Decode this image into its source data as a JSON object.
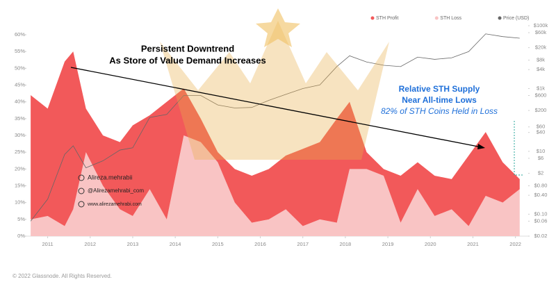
{
  "chart_data": {
    "type": "stacked-area",
    "x": [
      2010.6,
      2011.0,
      2011.4,
      2011.6,
      2011.9,
      2012.3,
      2012.7,
      2013.0,
      2013.4,
      2013.8,
      2014.2,
      2014.6,
      2015.0,
      2015.4,
      2015.8,
      2016.2,
      2016.6,
      2017.0,
      2017.4,
      2017.8,
      2018.1,
      2018.5,
      2018.9,
      2019.3,
      2019.7,
      2020.1,
      2020.5,
      2020.9,
      2021.3,
      2021.7,
      2022.1
    ],
    "series": [
      {
        "name": "STH Loss",
        "color": "#f9c4c4",
        "values": [
          5,
          6,
          3,
          8,
          25,
          15,
          8,
          6,
          14,
          5,
          30,
          28,
          22,
          10,
          4,
          5,
          8,
          3,
          5,
          4,
          20,
          20,
          18,
          4,
          14,
          6,
          8,
          3,
          12,
          10,
          14
        ]
      },
      {
        "name": "STH Profit",
        "color": "#f2595a",
        "values": [
          37,
          32,
          49,
          47,
          13,
          15,
          20,
          27,
          22,
          35,
          14,
          7,
          3,
          10,
          14,
          15,
          16,
          23,
          23,
          31,
          20,
          5,
          2,
          14,
          8,
          12,
          9,
          21,
          19,
          12,
          3
        ]
      },
      {
        "name": "Price (USD)",
        "color": "#666666",
        "axis": "y2",
        "values": [
          0.06,
          0.3,
          8,
          15,
          3,
          5,
          11,
          13,
          120,
          150,
          600,
          600,
          300,
          240,
          250,
          420,
          650,
          1000,
          1300,
          5000,
          11000,
          7000,
          5500,
          5000,
          10000,
          8500,
          9500,
          15000,
          55000,
          45000,
          40000
        ]
      }
    ],
    "xlim": [
      2010.5,
      2022.3
    ],
    "xticks": [
      2011,
      2012,
      2013,
      2014,
      2015,
      2016,
      2017,
      2018,
      2019,
      2020,
      2021,
      2022
    ],
    "ylim": [
      0,
      60
    ],
    "yticks": [
      {
        "value": 0,
        "label": "0%"
      },
      {
        "value": 5,
        "label": "5%"
      },
      {
        "value": 10,
        "label": "10%"
      },
      {
        "value": 15,
        "label": "15%"
      },
      {
        "value": 20,
        "label": "20%"
      },
      {
        "value": 25,
        "label": "25%"
      },
      {
        "value": 30,
        "label": "30%"
      },
      {
        "value": 35,
        "label": "35%"
      },
      {
        "value": 40,
        "label": "40%"
      },
      {
        "value": 45,
        "label": "45%"
      },
      {
        "value": 50,
        "label": "50%"
      },
      {
        "value": 55,
        "label": "55%"
      },
      {
        "value": 60,
        "label": "60%"
      }
    ],
    "y2lim": [
      0.02,
      100000
    ],
    "y2log": true,
    "y2ticks": [
      {
        "value": 0.02,
        "label": "$0.02"
      },
      {
        "value": 0.06,
        "label": "$0.06"
      },
      {
        "value": 0.1,
        "label": "$0.10"
      },
      {
        "value": 0.4,
        "label": "$0.40"
      },
      {
        "value": 0.8,
        "label": "$0.80"
      },
      {
        "value": 2,
        "label": "$2"
      },
      {
        "value": 6,
        "label": "$6"
      },
      {
        "value": 10,
        "label": "$10"
      },
      {
        "value": 40,
        "label": "$40"
      },
      {
        "value": 60,
        "label": "$60"
      },
      {
        "value": 200,
        "label": "$200"
      },
      {
        "value": 600,
        "label": "$600"
      },
      {
        "value": 1000,
        "label": "$1k"
      },
      {
        "value": 4000,
        "label": "$4k"
      },
      {
        "value": 8000,
        "label": "$8k"
      },
      {
        "value": 20000,
        "label": "$20k"
      },
      {
        "value": 60000,
        "label": "$60k"
      },
      {
        "value": 100000,
        "label": "$100k"
      }
    ],
    "grid": false,
    "legend": "top-right",
    "annotations": [
      "Persistent Downtrend",
      "As Store of Value Demand Increases",
      "Relative STH Supply",
      "Near All-time Lows",
      "82% of STH Coins Held in Loss"
    ],
    "watermarks": [
      "Alireza.mehrabii",
      "@Alirezamehrabi_com",
      "www.alirezamehrabi.com"
    ],
    "footer": "© 2022 Glassnode. All Rights Reserved."
  }
}
